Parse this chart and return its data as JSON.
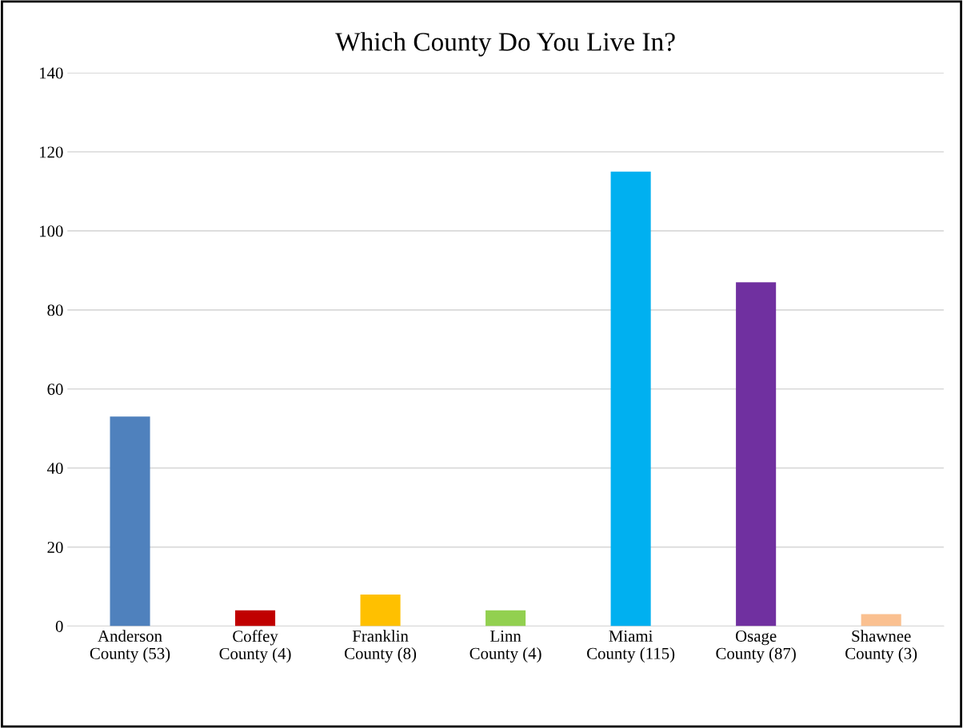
{
  "chart_data": {
    "type": "bar",
    "title": "Which County Do You Live In?",
    "categories": [
      "Anderson County (53)",
      "Coffey County (4)",
      "Franklin County (8)",
      "Linn County (4)",
      "Miami County (115)",
      "Osage County (87)",
      "Shawnee County (3)"
    ],
    "values": [
      53,
      4,
      8,
      4,
      115,
      87,
      3
    ],
    "colors": [
      "#4f81bd",
      "#c00000",
      "#ffc000",
      "#92d050",
      "#00b0f0",
      "#7030a0",
      "#fac090"
    ],
    "ylim": [
      0,
      140
    ],
    "yticks": [
      0,
      20,
      40,
      60,
      80,
      100,
      120,
      140
    ],
    "grid": "y"
  }
}
